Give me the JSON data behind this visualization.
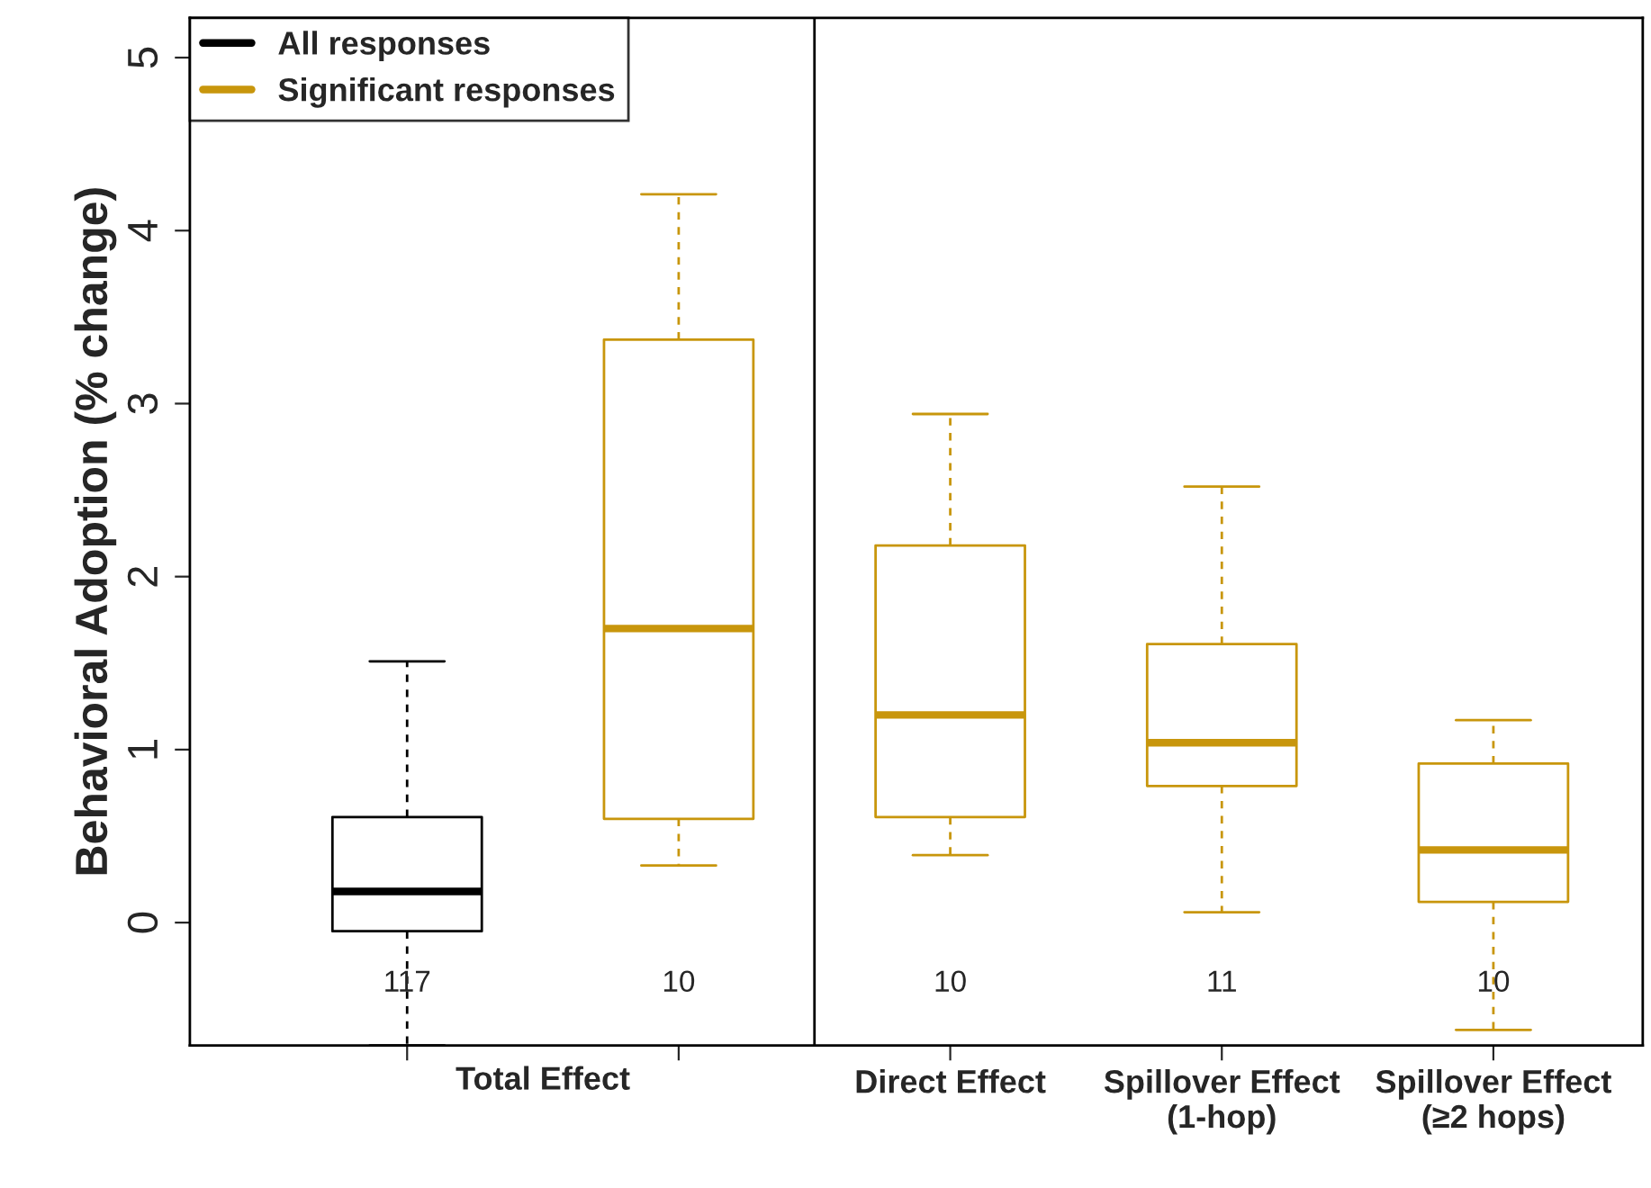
{
  "chart_data": {
    "type": "box",
    "ylabel": "Behavioral Adoption (% change)",
    "categories": [
      null,
      null,
      "Direct Effect",
      "Spillover Effect\n(1-hop)",
      "Spillover Effect\n(≥2 hops)"
    ],
    "series": [
      {
        "name": "All responses",
        "color": "#000000",
        "boxes": [
          {
            "low": -0.71,
            "q1": -0.05,
            "median": 0.18,
            "q3": 0.61,
            "high": 1.51
          },
          null,
          null,
          null,
          null
        ]
      },
      {
        "name": "Significant responses",
        "color": "#c8960c",
        "boxes": [
          null,
          {
            "low": 0.33,
            "q1": 0.6,
            "median": 1.7,
            "q3": 3.37,
            "high": 4.21
          },
          {
            "low": 0.39,
            "q1": 0.61,
            "median": 1.2,
            "q3": 2.18,
            "high": 2.94
          },
          {
            "low": 0.06,
            "q1": 0.79,
            "median": 1.04,
            "q3": 1.61,
            "high": 2.52
          },
          {
            "low": -0.62,
            "q1": 0.12,
            "median": 0.42,
            "q3": 0.92,
            "high": 1.17
          }
        ]
      }
    ],
    "annotations": [
      "Total Effect",
      "117",
      "10",
      "10",
      "11",
      "10"
    ],
    "ylim": [
      -0.71,
      5.23
    ],
    "yticks": [
      0,
      1,
      2,
      3,
      4,
      5
    ],
    "grid": false,
    "legend": "top left"
  }
}
